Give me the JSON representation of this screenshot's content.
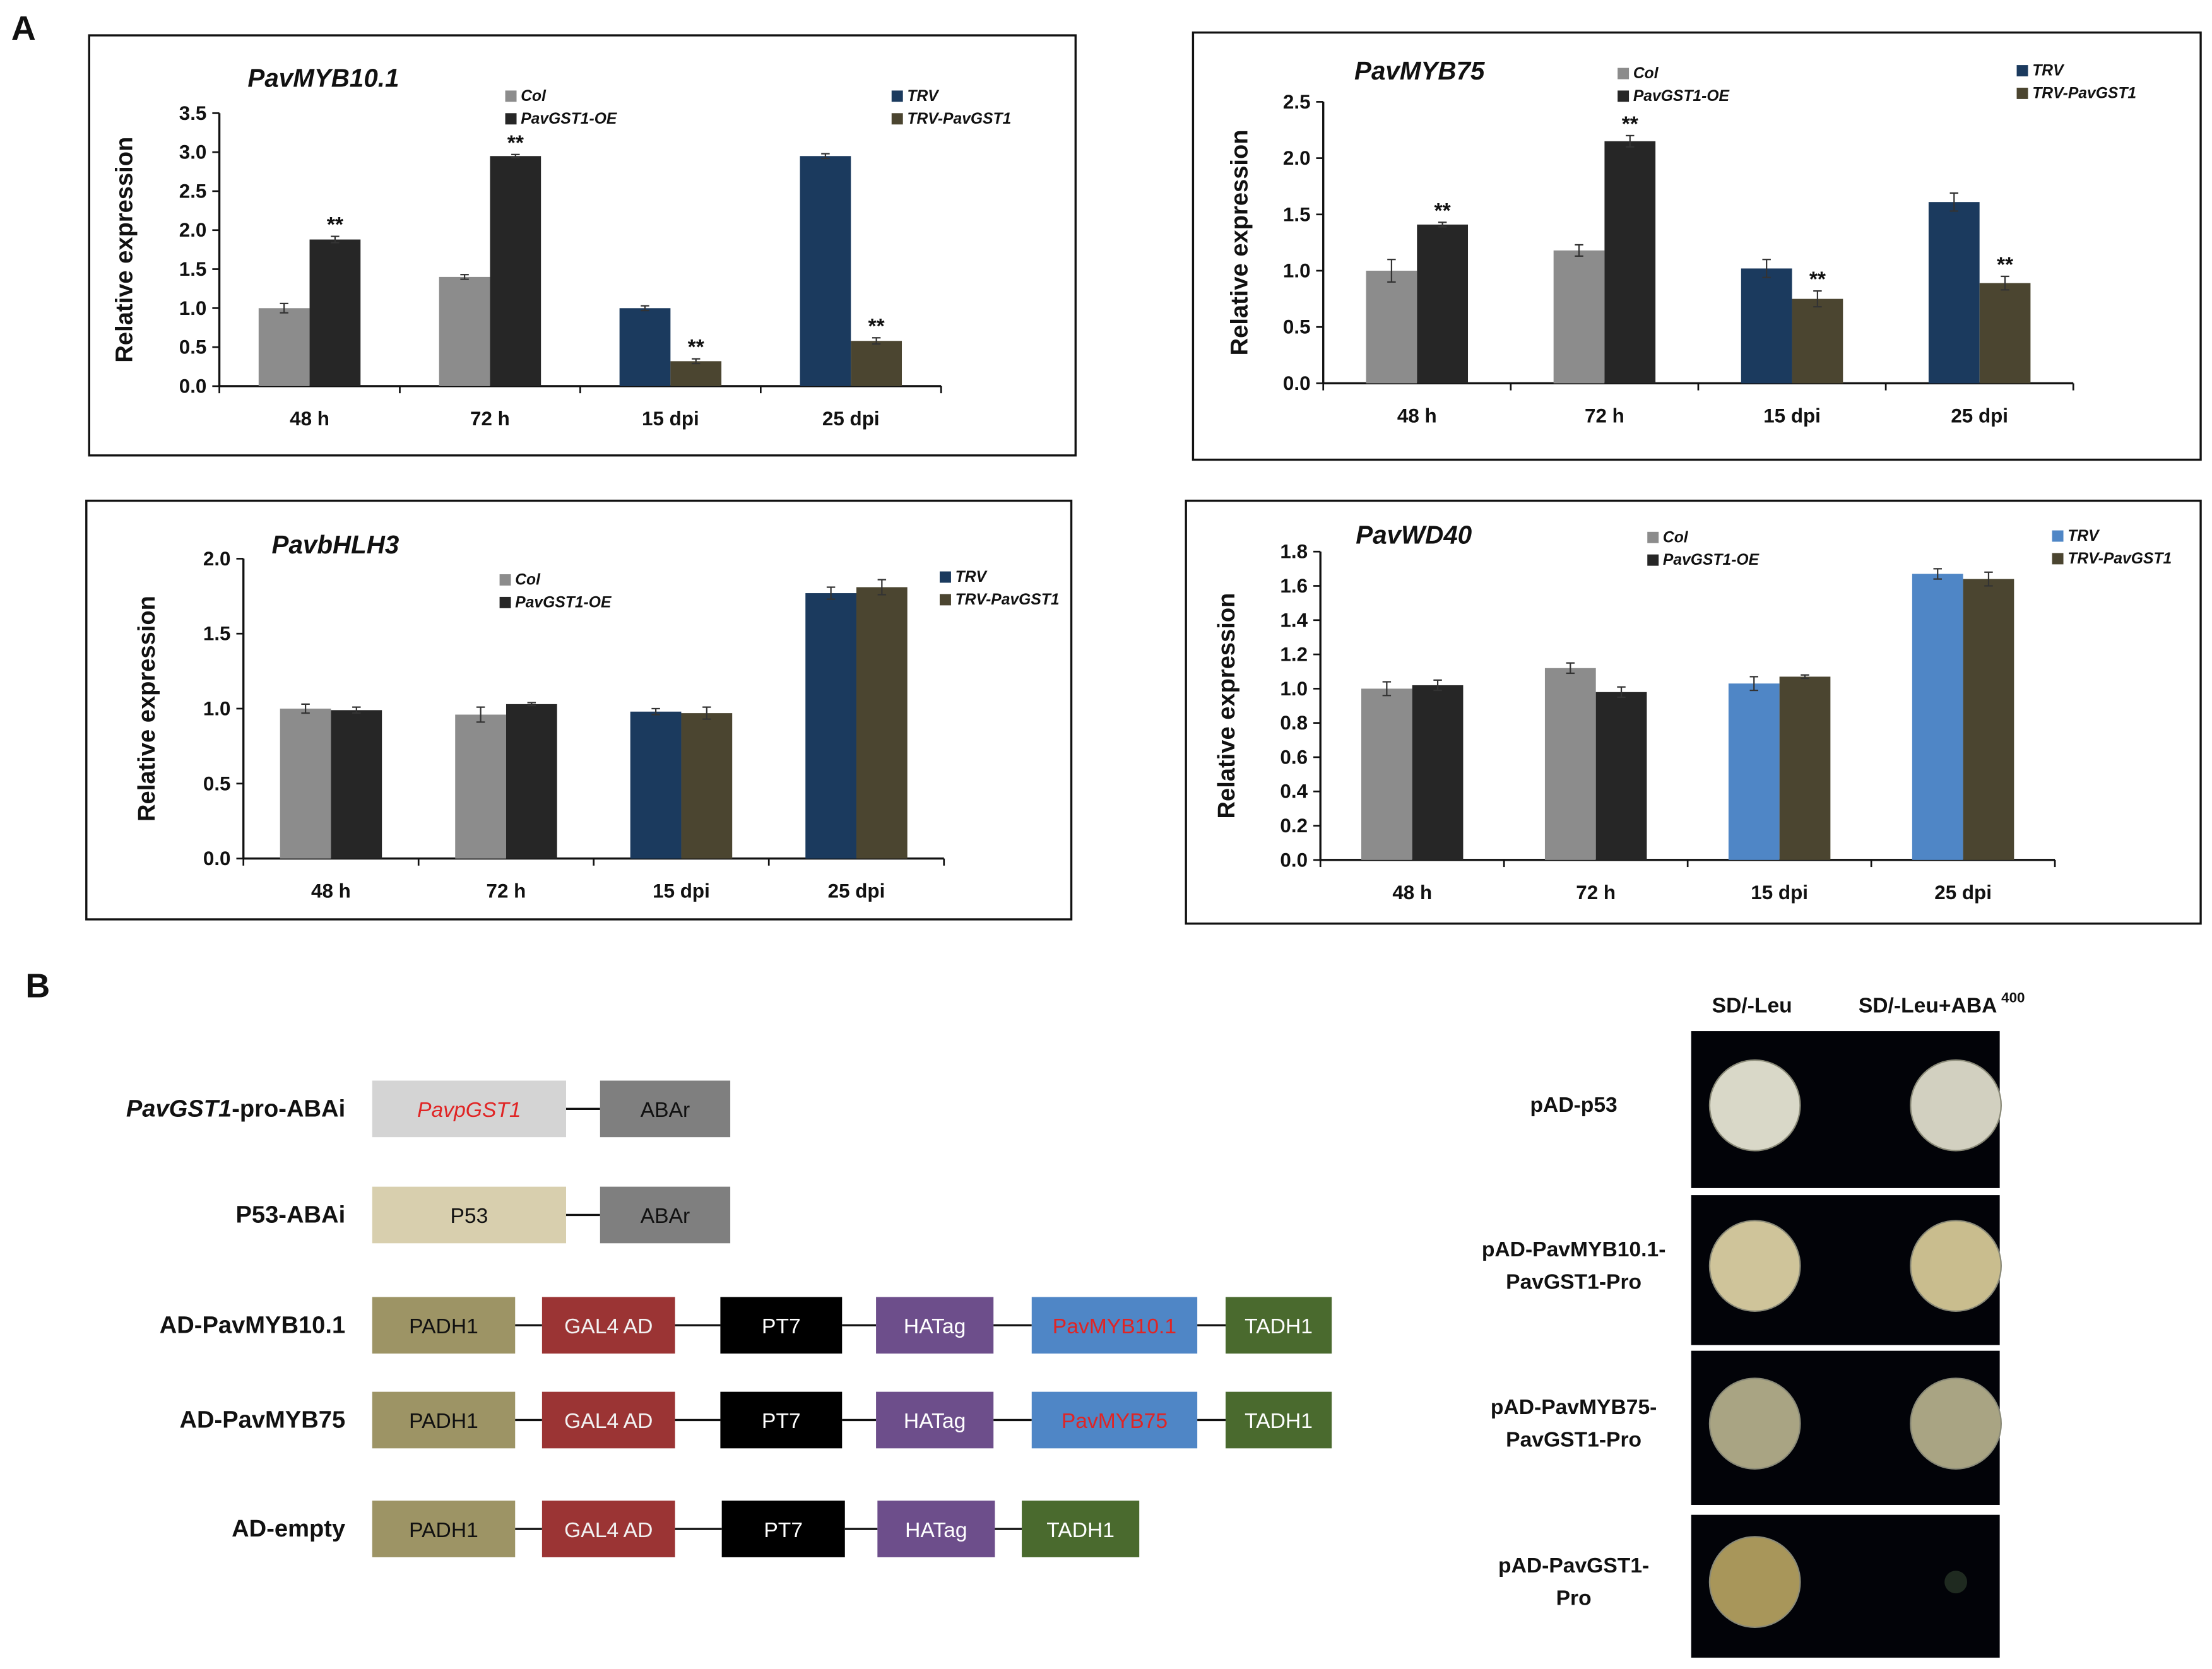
{
  "panel_labels": [
    "A",
    "B"
  ],
  "chart_data": [
    {
      "type": "bar",
      "title": "PavMYB10.1",
      "y_label": "Relative expression",
      "categories": [
        "48 h",
        "72 h",
        "15 dpi",
        "25 dpi"
      ],
      "ylim": [
        0,
        3.5
      ],
      "yticks": [
        {
          "value": 0,
          "label": "0.0"
        },
        0.5,
        {
          "value": 1,
          "label": "1.0"
        },
        1.5,
        {
          "value": 2,
          "label": "2.0"
        },
        2.5,
        {
          "value": 3,
          "label": "3.0"
        },
        3.5
      ],
      "series": [
        {
          "name": "Col",
          "color": "#8c8c8c",
          "values": [
            1.0,
            1.4,
            null,
            null
          ],
          "errors": [
            0.06,
            0.03,
            null,
            null
          ],
          "significance": [
            null,
            null,
            null,
            null
          ]
        },
        {
          "name": "PavGST1-OE",
          "color": "#262626",
          "values": [
            1.88,
            2.95,
            null,
            null
          ],
          "errors": [
            0.04,
            0.02,
            null,
            null
          ],
          "significance": [
            "**",
            "**",
            null,
            null
          ]
        },
        {
          "name": "TRV",
          "color": "#1b3a5e",
          "values": [
            null,
            null,
            1.0,
            2.95
          ],
          "errors": [
            null,
            null,
            0.03,
            0.03
          ],
          "significance": [
            null,
            null,
            null,
            null
          ]
        },
        {
          "name": "TRV-PavGST1",
          "color": "#4b4530",
          "values": [
            null,
            null,
            0.32,
            0.58
          ],
          "errors": [
            null,
            null,
            0.03,
            0.04
          ],
          "significance": [
            null,
            null,
            "**",
            "**"
          ]
        }
      ]
    },
    {
      "type": "bar",
      "title": "PavMYB75",
      "y_label": "Relative expression",
      "categories": [
        "48 h",
        "72 h",
        "15 dpi",
        "25 dpi"
      ],
      "ylim": [
        0,
        2.5
      ],
      "yticks": [
        {
          "value": 0,
          "label": "0.0"
        },
        0.5,
        {
          "value": 1,
          "label": "1.0"
        },
        1.5,
        {
          "value": 2,
          "label": "2.0"
        },
        2.5
      ],
      "series": [
        {
          "name": "Col",
          "color": "#8c8c8c",
          "values": [
            1.0,
            1.18,
            null,
            null
          ],
          "errors": [
            0.1,
            0.05,
            null,
            null
          ],
          "significance": [
            null,
            null,
            null,
            null
          ]
        },
        {
          "name": "PavGST1-OE",
          "color": "#262626",
          "values": [
            1.41,
            2.15,
            null,
            null
          ],
          "errors": [
            0.02,
            0.05,
            null,
            null
          ],
          "significance": [
            "**",
            "**",
            null,
            null
          ]
        },
        {
          "name": "TRV",
          "color": "#1b3a5e",
          "values": [
            null,
            null,
            1.02,
            1.61
          ],
          "errors": [
            null,
            null,
            0.08,
            0.08
          ],
          "significance": [
            null,
            null,
            null,
            null
          ]
        },
        {
          "name": "TRV-PavGST1",
          "color": "#4b4530",
          "values": [
            null,
            null,
            0.75,
            0.89
          ],
          "errors": [
            null,
            null,
            0.07,
            0.06
          ],
          "significance": [
            null,
            null,
            "**",
            "**"
          ]
        }
      ]
    },
    {
      "type": "bar",
      "title": "PavbHLH3",
      "y_label": "Relative expression",
      "categories": [
        "48 h",
        "72 h",
        "15 dpi",
        "25 dpi"
      ],
      "ylim": [
        0,
        2.0
      ],
      "yticks": [
        {
          "value": 0,
          "label": "0.0"
        },
        0.5,
        {
          "value": 1,
          "label": "1.0"
        },
        1.5,
        {
          "value": 2,
          "label": "2.0"
        }
      ],
      "series": [
        {
          "name": "Col",
          "color": "#8c8c8c",
          "values": [
            1.0,
            0.96,
            null,
            null
          ],
          "errors": [
            0.03,
            0.05,
            null,
            null
          ],
          "significance": [
            null,
            null,
            null,
            null
          ]
        },
        {
          "name": "PavGST1-OE",
          "color": "#262626",
          "values": [
            0.99,
            1.03,
            null,
            null
          ],
          "errors": [
            0.02,
            0.01,
            null,
            null
          ],
          "significance": [
            null,
            null,
            null,
            null
          ]
        },
        {
          "name": "TRV",
          "color": "#1b3a5e",
          "values": [
            null,
            null,
            0.98,
            1.77
          ],
          "errors": [
            null,
            null,
            0.02,
            0.04
          ],
          "significance": [
            null,
            null,
            null,
            null
          ]
        },
        {
          "name": "TRV-PavGST1",
          "color": "#4b4530",
          "values": [
            null,
            null,
            0.97,
            1.81
          ],
          "errors": [
            null,
            null,
            0.04,
            0.05
          ],
          "significance": [
            null,
            null,
            null,
            null
          ]
        }
      ]
    },
    {
      "type": "bar",
      "title": "PavWD40",
      "y_label": "Relative expression",
      "categories": [
        "48 h",
        "72 h",
        "15 dpi",
        "25 dpi"
      ],
      "ylim": [
        0,
        1.8
      ],
      "yticks": [
        {
          "value": 0,
          "label": "0.0"
        },
        0.2,
        0.4,
        0.6,
        0.8,
        {
          "value": 1,
          "label": "1.0"
        },
        1.2,
        1.4,
        1.6,
        1.8
      ],
      "series": [
        {
          "name": "Col",
          "color": "#8c8c8c",
          "values": [
            1.0,
            1.12,
            null,
            null
          ],
          "errors": [
            0.04,
            0.03,
            null,
            null
          ],
          "significance": [
            null,
            null,
            null,
            null
          ]
        },
        {
          "name": "PavGST1-OE",
          "color": "#262626",
          "values": [
            1.02,
            0.98,
            null,
            null
          ],
          "errors": [
            0.03,
            0.03,
            null,
            null
          ],
          "significance": [
            null,
            null,
            null,
            null
          ]
        },
        {
          "name": "TRV",
          "color": "#4f86c6",
          "values": [
            null,
            null,
            1.03,
            1.67
          ],
          "errors": [
            null,
            null,
            0.04,
            0.03
          ],
          "significance": [
            null,
            null,
            null,
            null
          ]
        },
        {
          "name": "TRV-PavGST1",
          "color": "#4b4530",
          "values": [
            null,
            null,
            1.07,
            1.64
          ],
          "errors": [
            null,
            null,
            0.01,
            0.04
          ],
          "significance": [
            null,
            null,
            null,
            null
          ]
        }
      ]
    }
  ],
  "constructs": [
    {
      "name_italic": "PavGST1",
      "name": "-pro-ABAi",
      "elements": [
        {
          "text": "PavpGST1",
          "color": "#d4d4d4",
          "text_color": "#e02424"
        },
        {
          "text": "ABAr",
          "color": "#7f7f7f",
          "text_color": "#111111"
        }
      ]
    },
    {
      "name": "P53-ABAi",
      "elements": [
        {
          "text": "P53",
          "color": "#d8cfae",
          "text_color": "#111111"
        },
        {
          "text": "ABAr",
          "color": "#7f7f7f",
          "text_color": "#111111"
        }
      ]
    },
    {
      "name": "AD-PavMYB10.1",
      "elements": [
        {
          "text": "PADH1",
          "color": "#9d9465",
          "text_color": "#111111"
        },
        {
          "text": "GAL4 AD",
          "color": "#9b3434",
          "text_color": "#f2f2f2"
        },
        {
          "text": "PT7",
          "color": "#000000",
          "text_color": "#ffffff"
        },
        {
          "text": "HATag",
          "color": "#6d4e8b",
          "text_color": "#ffffff"
        },
        {
          "text": "PavMYB10.1",
          "color": "#4f86c6",
          "text_color": "#e02424"
        },
        {
          "text": "TADH1",
          "color": "#4a6a2e",
          "text_color": "#ffffff"
        }
      ]
    },
    {
      "name": "AD-PavMYB75",
      "elements": [
        {
          "text": "PADH1",
          "color": "#9d9465",
          "text_color": "#111111"
        },
        {
          "text": "GAL4 AD",
          "color": "#9b3434",
          "text_color": "#f2f2f2"
        },
        {
          "text": "PT7",
          "color": "#000000",
          "text_color": "#ffffff"
        },
        {
          "text": "HATag",
          "color": "#6d4e8b",
          "text_color": "#ffffff"
        },
        {
          "text": "PavMYB75",
          "color": "#4f86c6",
          "text_color": "#e02424"
        },
        {
          "text": "TADH1",
          "color": "#4a6a2e",
          "text_color": "#ffffff"
        }
      ]
    },
    {
      "name": "AD-empty",
      "elements": [
        {
          "text": "PADH1",
          "color": "#9d9465",
          "text_color": "#111111"
        },
        {
          "text": "GAL4 AD",
          "color": "#9b3434",
          "text_color": "#f2f2f2"
        },
        {
          "text": "PT7",
          "color": "#000000",
          "text_color": "#ffffff"
        },
        {
          "text": "HATag",
          "color": "#6d4e8b",
          "text_color": "#ffffff"
        },
        {
          "text": "TADH1",
          "color": "#4a6a2e",
          "text_color": "#ffffff"
        }
      ]
    }
  ],
  "yeast": {
    "columns": [
      "SD/-Leu",
      "SD/-Leu+ABA"
    ],
    "column_superscript": "400",
    "rows": [
      [
        "pAD-p53"
      ],
      [
        "pAD-PavMYB10.1-",
        "PavGST1-Pro"
      ],
      [
        "pAD-PavMYB75-",
        "PavGST1-Pro"
      ],
      [
        "pAD-PavGST1-",
        "Pro"
      ]
    ]
  }
}
